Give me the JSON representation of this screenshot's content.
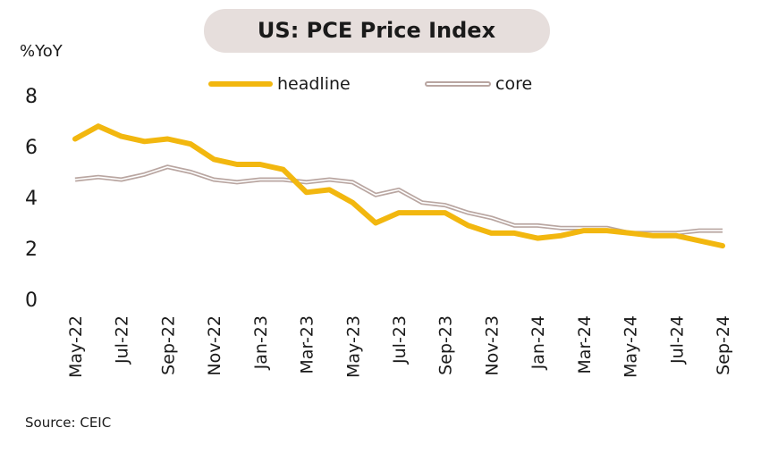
{
  "chart_data": {
    "type": "line",
    "title": "US: PCE Price Index",
    "ylabel": "%YoY",
    "source": "Source: CEIC",
    "ylim": [
      0,
      8
    ],
    "yticks": [
      "0",
      "2",
      "4",
      "6",
      "8"
    ],
    "grid": false,
    "legend_position": "top",
    "x": [
      "May-22",
      "Jun-22",
      "Jul-22",
      "Aug-22",
      "Sep-22",
      "Oct-22",
      "Nov-22",
      "Dec-22",
      "Jan-23",
      "Feb-23",
      "Mar-23",
      "Apr-23",
      "May-23",
      "Jun-23",
      "Jul-23",
      "Aug-23",
      "Sep-23",
      "Oct-23",
      "Nov-23",
      "Dec-23",
      "Jan-24",
      "Feb-24",
      "Mar-24",
      "Apr-24",
      "May-24",
      "Jun-24",
      "Jul-24",
      "Aug-24",
      "Sep-24"
    ],
    "xtick_labels": [
      "May-22",
      "Jul-22",
      "Sep-22",
      "Nov-22",
      "Jan-23",
      "Mar-23",
      "May-23",
      "Jul-23",
      "Sep-23",
      "Nov-23",
      "Jan-24",
      "Mar-24",
      "May-24",
      "Jul-24",
      "Sep-24"
    ],
    "series": [
      {
        "name": "headline",
        "color": "#f2b70f",
        "values": [
          6.3,
          6.8,
          6.4,
          6.2,
          6.3,
          6.1,
          5.5,
          5.3,
          5.3,
          5.1,
          4.2,
          4.3,
          3.8,
          3.0,
          3.4,
          3.4,
          3.4,
          2.9,
          2.6,
          2.6,
          2.4,
          2.5,
          2.7,
          2.7,
          2.6,
          2.5,
          2.5,
          2.3,
          2.1
        ]
      },
      {
        "name": "core",
        "color": "#b9a6a1",
        "values": [
          4.7,
          4.8,
          4.7,
          4.9,
          5.2,
          5.0,
          4.7,
          4.6,
          4.7,
          4.7,
          4.6,
          4.7,
          4.6,
          4.1,
          4.3,
          3.8,
          3.7,
          3.4,
          3.2,
          2.9,
          2.9,
          2.8,
          2.8,
          2.8,
          2.6,
          2.6,
          2.6,
          2.7,
          2.7
        ]
      }
    ]
  }
}
